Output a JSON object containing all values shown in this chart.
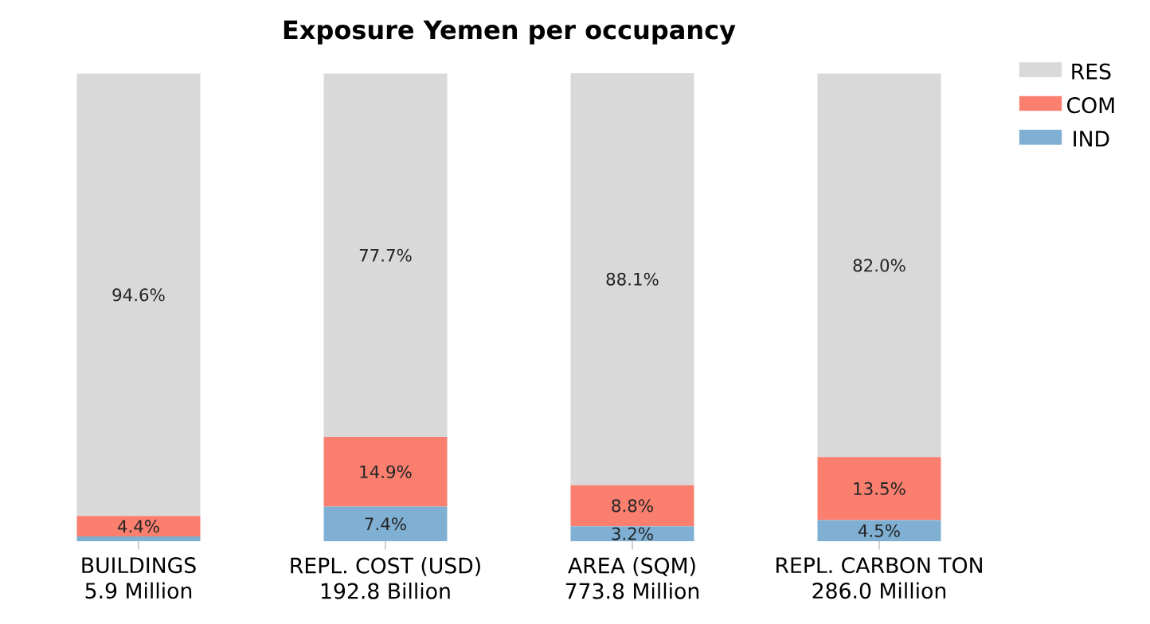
{
  "chart_data": {
    "type": "bar",
    "title": "Exposure Yemen per occupancy",
    "categories": [
      "BUILDINGS\n5.9 Million",
      "REPL. COST (USD)\n192.8 Billion",
      "AREA (SQM)\n773.8 Million",
      "REPL. CARBON TON\n286.0 Million"
    ],
    "stacked": true,
    "tick_labels": "x",
    "legend": "top right",
    "series": [
      {
        "name": "IND",
        "color": "#7fb0d3",
        "values": [
          1.0,
          7.4,
          3.2,
          4.5
        ],
        "value_labels": [
          null,
          "7.4%",
          "3.2%",
          "4.5%"
        ]
      },
      {
        "name": "COM",
        "color": "#fa7f6f",
        "values": [
          4.4,
          14.9,
          8.8,
          13.5
        ],
        "value_labels": [
          "4.4%",
          "14.9%",
          "8.8%",
          "13.5%"
        ]
      },
      {
        "name": "RES",
        "color": "#d9d9d9",
        "values": [
          94.6,
          77.7,
          88.1,
          82.0
        ],
        "value_labels": [
          "94.6%",
          "77.7%",
          "88.1%",
          "82.0%"
        ]
      }
    ]
  }
}
